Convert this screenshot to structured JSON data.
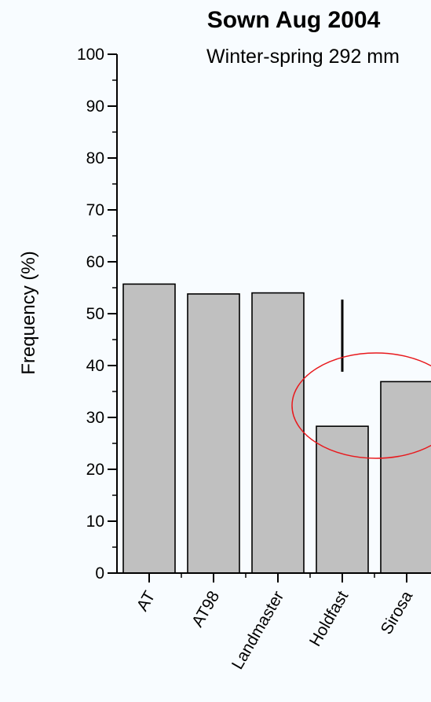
{
  "chart_data": {
    "type": "bar",
    "title": "Sown Aug 2004",
    "subtitle": "Winter-spring 292 mm",
    "ylabel": "Frequency (%)",
    "xlabel": "",
    "categories": [
      "AT",
      "AT98",
      "Landmaster",
      "Holdfast",
      "Sirosa"
    ],
    "values": [
      55.7,
      53.8,
      54.0,
      28.3,
      36.9
    ],
    "error_bar": {
      "low": 38.8,
      "high": 52.7
    },
    "ylim": [
      0,
      100
    ],
    "yticks": [
      "0",
      "10",
      "20",
      "30",
      "40",
      "50",
      "60",
      "70",
      "80",
      "90",
      "100"
    ],
    "grid": false,
    "legend": "none",
    "highlight": "red ellipse around Holdfast and Sirosa",
    "colors": {
      "bar_fill": "#c0c0c0",
      "bar_stroke": "#000000",
      "highlight": "#e8191d",
      "background": "#f8fcff"
    }
  }
}
